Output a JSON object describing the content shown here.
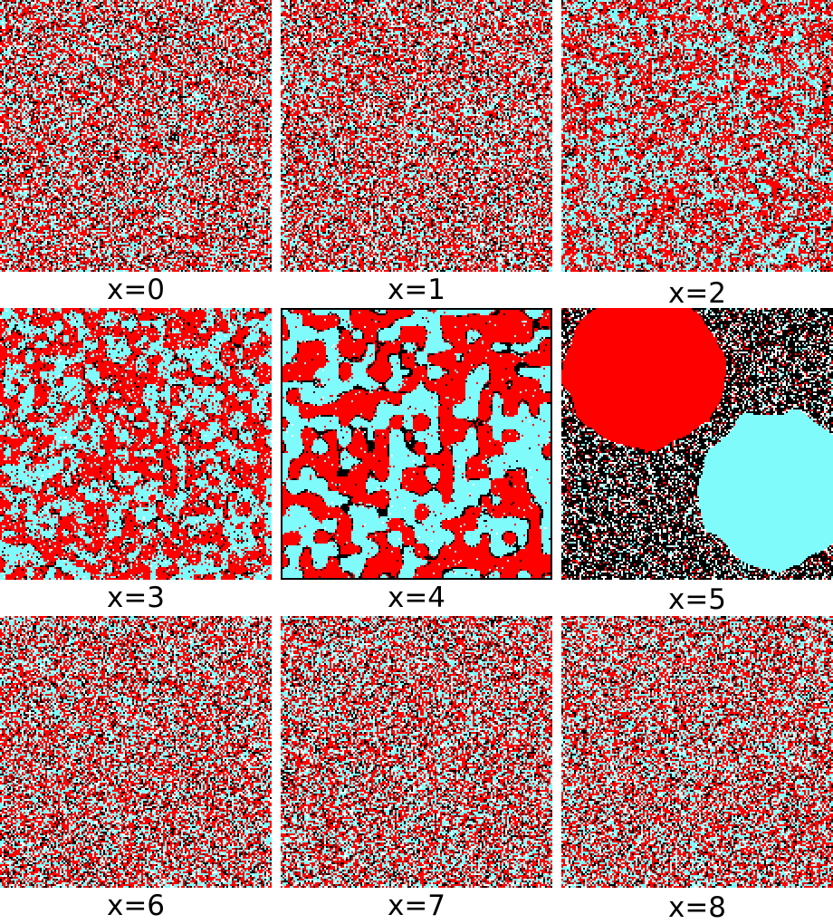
{
  "colors": {
    "red": "#ff0000",
    "cyan": "#7ffbfb",
    "black": "#000000",
    "white": "#ffffff"
  },
  "panels": [
    {
      "label": "x=0",
      "pattern": "noise"
    },
    {
      "label": "x=1",
      "pattern": "noise"
    },
    {
      "label": "x=2",
      "pattern": "fine-clusters"
    },
    {
      "label": "x=3",
      "pattern": "small-domains"
    },
    {
      "label": "x=4",
      "pattern": "coarsened-domains"
    },
    {
      "label": "x=5",
      "pattern": "two-droplets"
    },
    {
      "label": "x=6",
      "pattern": "noise"
    },
    {
      "label": "x=7",
      "pattern": "noise"
    },
    {
      "label": "x=8",
      "pattern": "noise"
    }
  ]
}
